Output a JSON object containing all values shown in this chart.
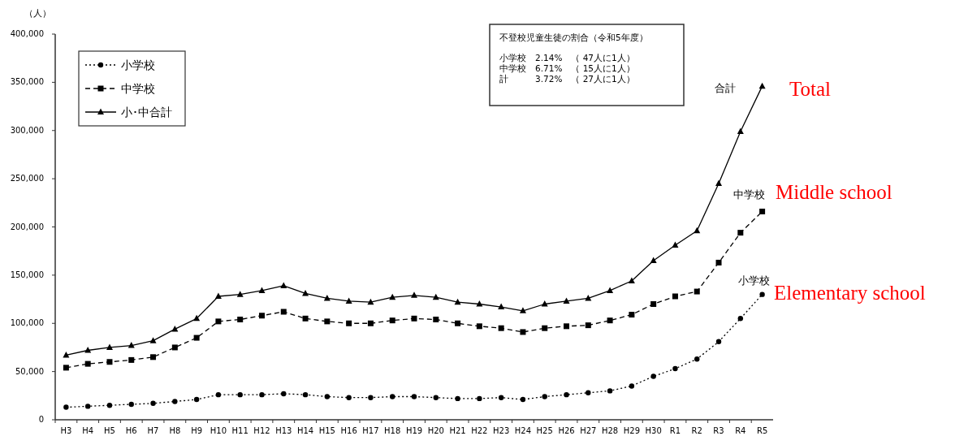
{
  "chart_data": {
    "type": "line",
    "ylabel": "（人）",
    "categories": [
      "H3",
      "H4",
      "H5",
      "H6",
      "H7",
      "H8",
      "H9",
      "H10",
      "H11",
      "H12",
      "H13",
      "H14",
      "H15",
      "H16",
      "H17",
      "H18",
      "H19",
      "H20",
      "H21",
      "H22",
      "H23",
      "H24",
      "H25",
      "H26",
      "H27",
      "H28",
      "H29",
      "H30",
      "R1",
      "R2",
      "R3",
      "R4",
      "R5"
    ],
    "series": [
      {
        "name": "小学校",
        "color": "#000000",
        "marker": "circle",
        "line_style": "dotted",
        "values": [
          13000,
          14000,
          15000,
          16000,
          17000,
          19000,
          21000,
          26000,
          26000,
          26000,
          27000,
          26000,
          24000,
          23000,
          23000,
          24000,
          24000,
          23000,
          22000,
          22000,
          23000,
          21000,
          24000,
          26000,
          28000,
          30000,
          35000,
          45000,
          53000,
          63000,
          81000,
          105000,
          130000
        ]
      },
      {
        "name": "中学校",
        "color": "#000000",
        "marker": "square",
        "line_style": "dashed",
        "values": [
          54000,
          58000,
          60000,
          62000,
          65000,
          75000,
          85000,
          102000,
          104000,
          108000,
          112000,
          105000,
          102000,
          100000,
          100000,
          103000,
          105000,
          104000,
          100000,
          97000,
          95000,
          91000,
          95000,
          97000,
          98000,
          103000,
          109000,
          120000,
          128000,
          133000,
          163000,
          194000,
          216000
        ]
      },
      {
        "name": "小･中合計",
        "color": "#000000",
        "marker": "triangle",
        "line_style": "solid",
        "values": [
          67000,
          72000,
          75000,
          77000,
          82000,
          94000,
          105000,
          128000,
          130000,
          134000,
          139000,
          131000,
          126000,
          123000,
          122000,
          127000,
          129000,
          127000,
          122000,
          120000,
          117000,
          113000,
          120000,
          123000,
          126000,
          134000,
          144000,
          165000,
          181000,
          196000,
          245000,
          299000,
          346000
        ]
      }
    ],
    "ylim": [
      0,
      400000
    ],
    "yticks": [
      {
        "value": 0,
        "label": "0"
      },
      {
        "value": 50000,
        "label": "50,000"
      },
      {
        "value": 100000,
        "label": "100,000"
      },
      {
        "value": 150000,
        "label": "150,000"
      },
      {
        "value": 200000,
        "label": "200,000"
      },
      {
        "value": 250000,
        "label": "250,000"
      },
      {
        "value": 300000,
        "label": "300,000"
      },
      {
        "value": 350000,
        "label": "350,000"
      },
      {
        "value": 400000,
        "label": "400,000"
      }
    ],
    "grid": false,
    "legend": "top left",
    "annotations": [
      "不登校児童生徒の割合（令和5年度）",
      "小学校　2.14%　（ 47人に1人）",
      "中学校　6.71%　（ 15人に1人）",
      "計　　　3.72%　（ 27人に1人）",
      "合計",
      "中学校",
      "小学校",
      "Total",
      "Middle school",
      "Elementary school"
    ]
  }
}
